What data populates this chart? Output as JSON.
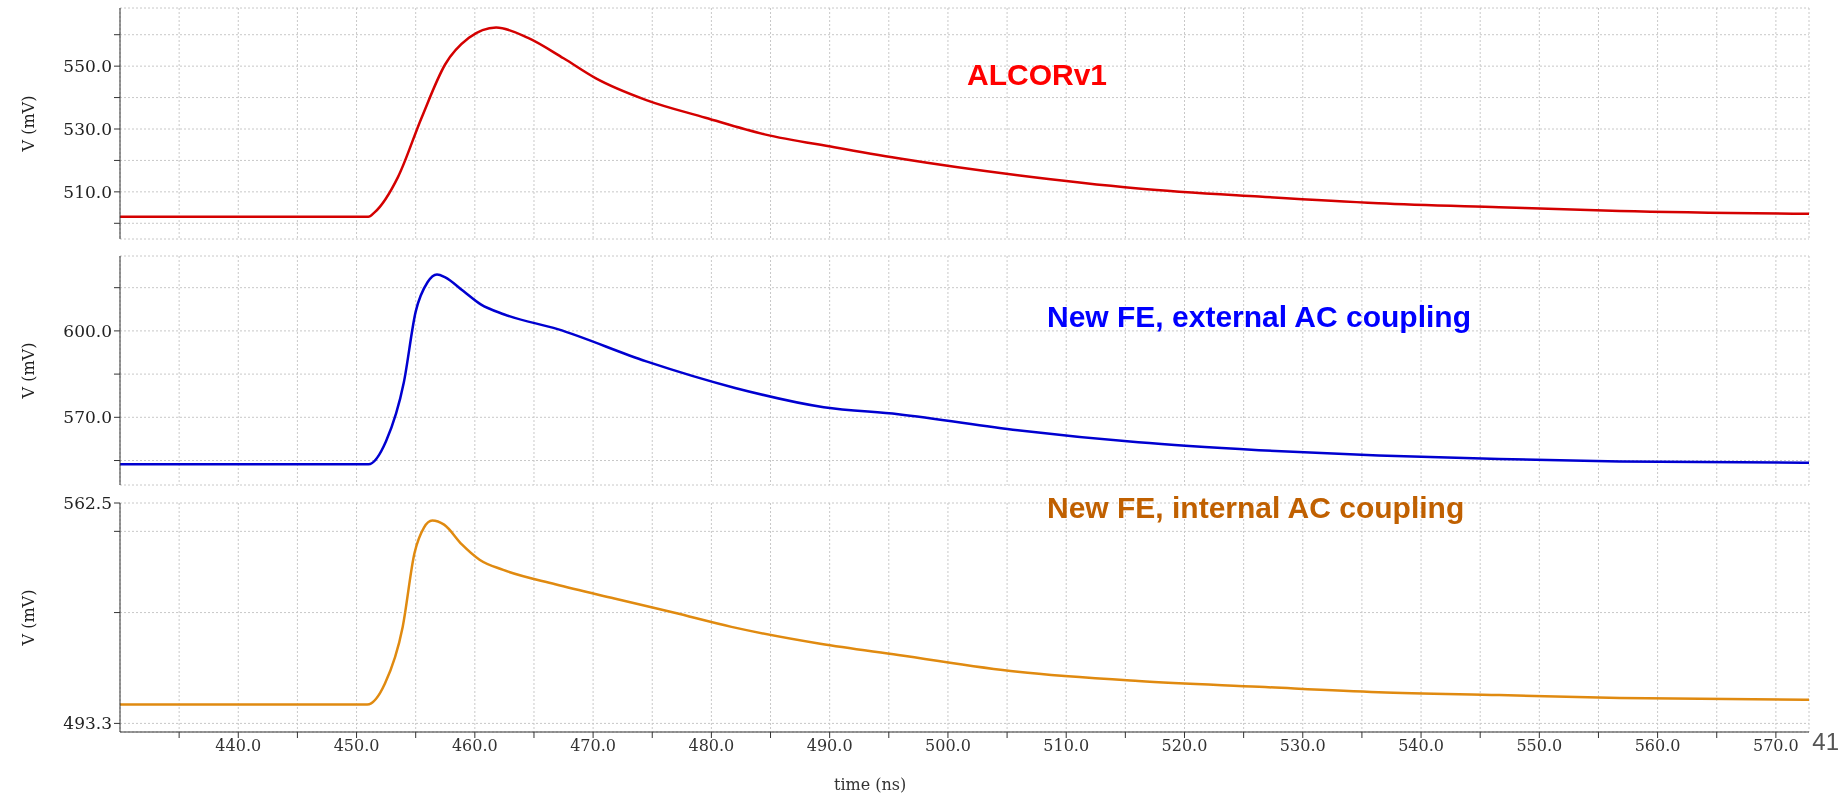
{
  "chart_data": [
    {
      "type": "line",
      "ylabel": "V (mV)",
      "xlim": [
        430,
        572.8
      ],
      "ylim": [
        495,
        568.5
      ],
      "xticks": [
        {
          "value": 435,
          "label": null
        },
        {
          "value": 440,
          "label": null
        },
        {
          "value": 445,
          "label": null
        },
        {
          "value": 450,
          "label": null
        },
        {
          "value": 455,
          "label": null
        },
        {
          "value": 460,
          "label": null
        },
        {
          "value": 465,
          "label": null
        },
        {
          "value": 470,
          "label": null
        },
        {
          "value": 475,
          "label": null
        },
        {
          "value": 480,
          "label": null
        },
        {
          "value": 485,
          "label": null
        },
        {
          "value": 490,
          "label": null
        },
        {
          "value": 495,
          "label": null
        },
        {
          "value": 500,
          "label": null
        },
        {
          "value": 505,
          "label": null
        },
        {
          "value": 510,
          "label": null
        },
        {
          "value": 515,
          "label": null
        },
        {
          "value": 520,
          "label": null
        },
        {
          "value": 525,
          "label": null
        },
        {
          "value": 530,
          "label": null
        },
        {
          "value": 535,
          "label": null
        },
        {
          "value": 540,
          "label": null
        },
        {
          "value": 545,
          "label": null
        },
        {
          "value": 550,
          "label": null
        },
        {
          "value": 555,
          "label": null
        },
        {
          "value": 560,
          "label": null
        },
        {
          "value": 565,
          "label": null
        },
        {
          "value": 570,
          "label": null
        }
      ],
      "yticks": [
        {
          "value": 500,
          "label": null
        },
        {
          "value": 510,
          "label": "510.0"
        },
        {
          "value": 520,
          "label": null
        },
        {
          "value": 530,
          "label": "530.0"
        },
        {
          "value": 540,
          "label": null
        },
        {
          "value": 550,
          "label": "550.0"
        },
        {
          "value": 560,
          "label": null
        }
      ],
      "grid": true,
      "tick_labels": "y",
      "line_style": "solid",
      "marker": "none",
      "series": [
        {
          "name": "ALCORv1",
          "color": "#d40000",
          "x": [
            430,
            451,
            451.5,
            453.5,
            455.5,
            457.5,
            459.5,
            461.8,
            464.5,
            467.5,
            470.2,
            474.5,
            479.5,
            484.5,
            490.4,
            495.8,
            505.9,
            516.1,
            526.3,
            536.4,
            546.6,
            556.8,
            572.8
          ],
          "values": [
            502.1,
            502.1,
            503.4,
            514.7,
            533.6,
            550.6,
            559,
            562.3,
            559,
            552.5,
            546.2,
            539.2,
            533.6,
            528.3,
            524.2,
            520.7,
            515.3,
            511.1,
            508.5,
            506.4,
            505.1,
            503.9,
            503.0
          ]
        }
      ]
    },
    {
      "type": "line",
      "ylabel": "V (mV)",
      "xlim": [
        430,
        572.8
      ],
      "ylim": [
        546.5,
        626
      ],
      "xticks": [
        {
          "value": 435,
          "label": null
        },
        {
          "value": 440,
          "label": null
        },
        {
          "value": 445,
          "label": null
        },
        {
          "value": 450,
          "label": null
        },
        {
          "value": 455,
          "label": null
        },
        {
          "value": 460,
          "label": null
        },
        {
          "value": 465,
          "label": null
        },
        {
          "value": 470,
          "label": null
        },
        {
          "value": 475,
          "label": null
        },
        {
          "value": 480,
          "label": null
        },
        {
          "value": 485,
          "label": null
        },
        {
          "value": 490,
          "label": null
        },
        {
          "value": 495,
          "label": null
        },
        {
          "value": 500,
          "label": null
        },
        {
          "value": 505,
          "label": null
        },
        {
          "value": 510,
          "label": null
        },
        {
          "value": 515,
          "label": null
        },
        {
          "value": 520,
          "label": null
        },
        {
          "value": 525,
          "label": null
        },
        {
          "value": 530,
          "label": null
        },
        {
          "value": 535,
          "label": null
        },
        {
          "value": 540,
          "label": null
        },
        {
          "value": 545,
          "label": null
        },
        {
          "value": 550,
          "label": null
        },
        {
          "value": 555,
          "label": null
        },
        {
          "value": 560,
          "label": null
        },
        {
          "value": 565,
          "label": null
        },
        {
          "value": 570,
          "label": null
        }
      ],
      "yticks": [
        {
          "value": 555,
          "label": null
        },
        {
          "value": 570,
          "label": "570.0"
        },
        {
          "value": 585,
          "label": null
        },
        {
          "value": 600,
          "label": "600.0"
        },
        {
          "value": 615,
          "label": null
        }
      ],
      "grid": true,
      "tick_labels": "y",
      "line_style": "solid",
      "marker": "none",
      "series": [
        {
          "name": "New FE, external AC coupling",
          "color": "#0000d0",
          "x": [
            430,
            451,
            452.5,
            454,
            455,
            456,
            456.8,
            457.5,
            459,
            460.5,
            462.5,
            467,
            474.5,
            482,
            489.5,
            495.8,
            505.9,
            516.1,
            526.3,
            536.4,
            546.6,
            556.8,
            572.8
          ],
          "values": [
            553.7,
            553.7,
            561.8,
            582.2,
            606.7,
            616.9,
            619.6,
            618.6,
            613.9,
            609.2,
            605.7,
            600.6,
            589.4,
            580.2,
            573.5,
            571.1,
            565.5,
            561.3,
            558.6,
            556.7,
            555.5,
            554.7,
            554.2
          ]
        }
      ]
    },
    {
      "type": "line",
      "ylabel": "V (mV)",
      "xlabel": "time (ns)",
      "xlim": [
        430,
        572.8
      ],
      "ylim": [
        490.6,
        562.5
      ],
      "xticks": [
        {
          "value": 435,
          "label": null
        },
        {
          "value": 440,
          "label": "440.0"
        },
        {
          "value": 445,
          "label": null
        },
        {
          "value": 450,
          "label": "450.0"
        },
        {
          "value": 455,
          "label": null
        },
        {
          "value": 460,
          "label": "460.0"
        },
        {
          "value": 465,
          "label": null
        },
        {
          "value": 470,
          "label": "470.0"
        },
        {
          "value": 475,
          "label": null
        },
        {
          "value": 480,
          "label": "480.0"
        },
        {
          "value": 485,
          "label": null
        },
        {
          "value": 490,
          "label": "490.0"
        },
        {
          "value": 495,
          "label": null
        },
        {
          "value": 500,
          "label": "500.0"
        },
        {
          "value": 505,
          "label": null
        },
        {
          "value": 510,
          "label": "510.0"
        },
        {
          "value": 515,
          "label": null
        },
        {
          "value": 520,
          "label": "520.0"
        },
        {
          "value": 525,
          "label": null
        },
        {
          "value": 530,
          "label": "530.0"
        },
        {
          "value": 535,
          "label": null
        },
        {
          "value": 540,
          "label": "540.0"
        },
        {
          "value": 545,
          "label": null
        },
        {
          "value": 550,
          "label": "550.0"
        },
        {
          "value": 555,
          "label": null
        },
        {
          "value": 560,
          "label": "560.0"
        },
        {
          "value": 565,
          "label": null
        },
        {
          "value": 570,
          "label": "570.0"
        }
      ],
      "yticks": [
        {
          "value": 493.3,
          "label": "493.3"
        },
        {
          "value": 528.1,
          "label": null
        },
        {
          "value": 553.6,
          "label": null
        },
        {
          "value": 562.5,
          "label": "562.5"
        }
      ],
      "grid": true,
      "line_style": "solid",
      "marker": "none",
      "annotations": [
        "41"
      ],
      "series": [
        {
          "name": "New FE, internal AC coupling",
          "color": "#e08a10",
          "x": [
            430,
            450.9,
            452.4,
            453.9,
            454.9,
            455.7,
            456.4,
            457.4,
            458.9,
            460.4,
            462.4,
            466.8,
            471.8,
            476.8,
            481.7,
            489.2,
            495.8,
            505.9,
            516.1,
            526.3,
            536.4,
            546.6,
            556.8,
            572.8
          ],
          "values": [
            499.2,
            499.2,
            505.8,
            523.6,
            546.8,
            554.8,
            557.0,
            555.7,
            549.5,
            544.7,
            541.5,
            537.0,
            532.5,
            528.1,
            523.6,
            518.3,
            514.8,
            509.5,
            506.6,
            504.8,
            503.1,
            502.2,
            501.3,
            500.7
          ]
        }
      ]
    }
  ]
}
